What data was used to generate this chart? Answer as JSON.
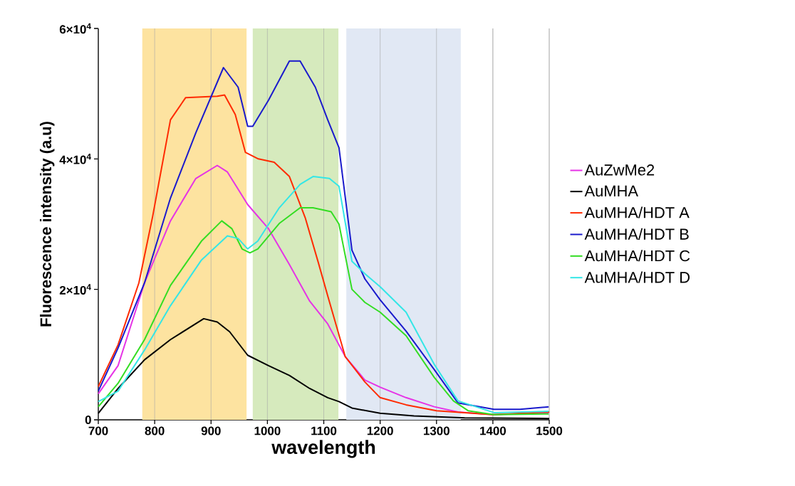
{
  "chart_data": {
    "type": "line",
    "xlabel": "wavelength",
    "ylabel": "Fluorescence intensity (a.u)",
    "xlim": [
      700,
      1500
    ],
    "ylim": [
      0,
      60000
    ],
    "xticks": [
      700,
      800,
      900,
      1000,
      1100,
      1200,
      1300,
      1400,
      1500
    ],
    "yticks": [
      0,
      {
        "value": 20000,
        "label": "2×10$^{4}$"
      },
      {
        "value": 40000,
        "label": "4×10$^{4}$"
      },
      {
        "value": 60000,
        "label": "6×10$^{4}$"
      }
    ],
    "grid": "x",
    "legend": "right",
    "marker": "none",
    "line_style": "solid",
    "bands": [
      {
        "axis": "x",
        "from": 778,
        "to": 963,
        "color": "#fde3a0"
      },
      {
        "axis": "x",
        "from": 974,
        "to": 1126,
        "color": "#d6eabd"
      },
      {
        "axis": "x",
        "from": 1140,
        "to": 1343,
        "color": "#e1e8f4"
      }
    ],
    "series": [
      {
        "name": "AuZwMe2",
        "color": "#e633e6",
        "x": [
          700,
          735,
          782,
          828,
          873,
          911,
          929,
          965,
          1002,
          1039,
          1075,
          1107,
          1138,
          1173,
          1200,
          1246,
          1296,
          1338,
          1402,
          1499
        ],
        "values": [
          4000,
          8300,
          21000,
          30500,
          37000,
          39000,
          38000,
          33000,
          29300,
          23800,
          18200,
          14700,
          9700,
          6100,
          5000,
          3400,
          2000,
          1200,
          800,
          1100
        ]
      },
      {
        "name": "AuMHA",
        "color": "#000000",
        "x": [
          700,
          735,
          782,
          828,
          887,
          911,
          933,
          965,
          1002,
          1039,
          1075,
          1107,
          1127,
          1150,
          1200,
          1260,
          1350,
          1500
        ],
        "values": [
          1000,
          4800,
          9200,
          12300,
          15500,
          15000,
          13500,
          9900,
          8300,
          6800,
          4800,
          3400,
          2800,
          1800,
          1000,
          600,
          300,
          200
        ]
      },
      {
        "name": "AuMHA/HDT A",
        "color": "#ff2a00",
        "x": [
          700,
          735,
          772,
          796,
          828,
          855,
          911,
          924,
          943,
          961,
          984,
          1012,
          1039,
          1067,
          1090,
          1107,
          1138,
          1173,
          1200,
          1246,
          1300,
          1400,
          1500
        ],
        "values": [
          5100,
          11500,
          21000,
          31000,
          46000,
          49400,
          49600,
          49800,
          46800,
          41000,
          40000,
          39500,
          37300,
          31000,
          24200,
          19000,
          9700,
          5800,
          3400,
          2300,
          1400,
          800,
          1200
        ]
      },
      {
        "name": "AuMHA/HDT B",
        "color": "#1a1acc",
        "x": [
          700,
          735,
          782,
          828,
          873,
          922,
          948,
          965,
          974,
          1002,
          1039,
          1058,
          1085,
          1107,
          1127,
          1150,
          1173,
          1200,
          1246,
          1296,
          1338,
          1402,
          1448,
          1499
        ],
        "values": [
          4400,
          11000,
          21000,
          34000,
          44000,
          54000,
          51000,
          45000,
          45000,
          49000,
          55000,
          55000,
          51000,
          46000,
          41700,
          26000,
          21600,
          18400,
          13600,
          7700,
          2600,
          1600,
          1600,
          2000
        ]
      },
      {
        "name": "AuMHA/HDT C",
        "color": "#33dd22",
        "x": [
          700,
          735,
          782,
          828,
          883,
          919,
          937,
          955,
          969,
          983,
          1021,
          1058,
          1081,
          1113,
          1127,
          1150,
          1173,
          1200,
          1246,
          1296,
          1330,
          1356,
          1402,
          1499
        ],
        "values": [
          2000,
          5600,
          12300,
          20600,
          27400,
          30500,
          29300,
          26200,
          25600,
          26200,
          30100,
          32500,
          32500,
          31900,
          30000,
          20000,
          18000,
          16500,
          12900,
          6500,
          2900,
          1400,
          800,
          900
        ]
      },
      {
        "name": "AuMHA/HDT D",
        "color": "#33e6e6",
        "x": [
          700,
          735,
          782,
          828,
          883,
          929,
          948,
          965,
          983,
          1021,
          1058,
          1081,
          1110,
          1127,
          1150,
          1173,
          1200,
          1246,
          1296,
          1338,
          1402,
          1499
        ],
        "values": [
          2800,
          4400,
          10700,
          17500,
          24500,
          28200,
          27800,
          26200,
          27400,
          32500,
          36100,
          37300,
          37000,
          35800,
          24300,
          22400,
          20400,
          16500,
          8500,
          2900,
          1100,
          1300
        ]
      }
    ]
  }
}
